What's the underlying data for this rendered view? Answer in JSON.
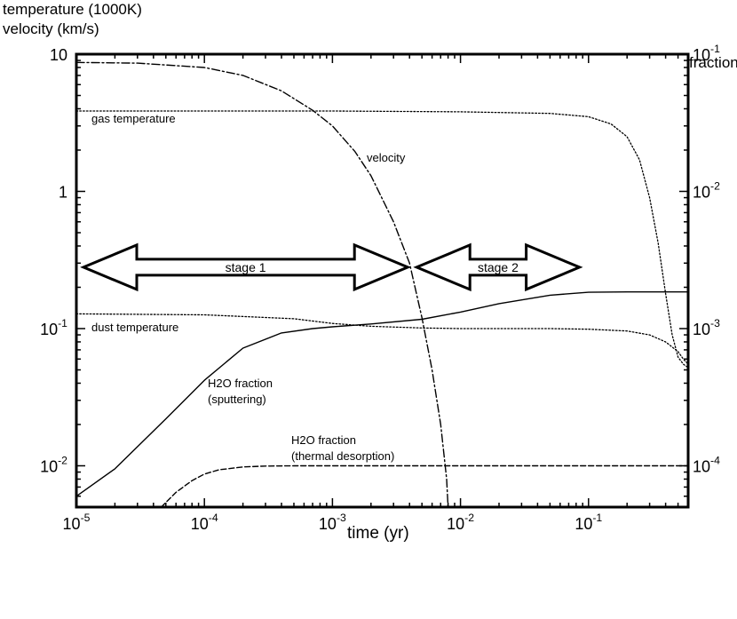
{
  "chart_data": {
    "type": "line",
    "x_scale": "log",
    "y_left_scale": "log",
    "y_right_scale": "log",
    "xlim": [
      1e-05,
      0.6
    ],
    "ylim_left": [
      0.005,
      10
    ],
    "ylim_right": [
      5e-05,
      0.1
    ],
    "axis_titles": {
      "y_left_line1": "temperature (1000K)",
      "y_left_line2": "velocity (km/s)",
      "y_right": "fraction",
      "x": "time (yr)"
    },
    "x_ticks": [
      {
        "value": 1e-05,
        "base": "10",
        "exp": "-5"
      },
      {
        "value": 0.0001,
        "base": "10",
        "exp": "-4"
      },
      {
        "value": 0.001,
        "base": "10",
        "exp": "-3"
      },
      {
        "value": 0.01,
        "base": "10",
        "exp": "-2"
      },
      {
        "value": 0.1,
        "base": "10",
        "exp": "-1"
      }
    ],
    "y_left_ticks": [
      {
        "value": 10,
        "base": "10",
        "exp": ""
      },
      {
        "value": 1,
        "base": "1",
        "exp": ""
      },
      {
        "value": 0.1,
        "base": "10",
        "exp": "-1"
      },
      {
        "value": 0.01,
        "base": "10",
        "exp": "-2"
      }
    ],
    "y_right_ticks": [
      {
        "value": 0.1,
        "base": "10",
        "exp": "-1"
      },
      {
        "value": 0.01,
        "base": "10",
        "exp": "-2"
      },
      {
        "value": 0.001,
        "base": "10",
        "exp": "-3"
      },
      {
        "value": 0.0001,
        "base": "10",
        "exp": "-4"
      }
    ],
    "series": [
      {
        "key": "velocity",
        "axis": "left",
        "style": "dashdot",
        "x": [
          1e-05,
          3e-05,
          0.0001,
          0.0002,
          0.0004,
          0.0007,
          0.001,
          0.0015,
          0.002,
          0.003,
          0.004,
          0.005,
          0.006,
          0.007,
          0.0078,
          0.008
        ],
        "y": [
          8.7,
          8.6,
          8.0,
          7.0,
          5.4,
          3.9,
          3.0,
          1.95,
          1.3,
          0.6,
          0.3,
          0.12,
          0.05,
          0.02,
          0.008,
          0.005
        ]
      },
      {
        "key": "gas_temperature",
        "axis": "left",
        "style": "dotted",
        "x": [
          1e-05,
          0.001,
          0.01,
          0.05,
          0.1,
          0.15,
          0.2,
          0.25,
          0.3,
          0.35,
          0.4,
          0.45,
          0.5,
          0.55,
          0.6
        ],
        "y": [
          3.85,
          3.85,
          3.8,
          3.7,
          3.5,
          3.1,
          2.5,
          1.7,
          0.9,
          0.42,
          0.18,
          0.09,
          0.062,
          0.055,
          0.052
        ]
      },
      {
        "key": "dust_temperature",
        "axis": "left",
        "style": "dotted",
        "x": [
          1e-05,
          0.0001,
          0.0005,
          0.001,
          0.002,
          0.005,
          0.01,
          0.05,
          0.1,
          0.2,
          0.3,
          0.4,
          0.5,
          0.55,
          0.6
        ],
        "y": [
          0.128,
          0.126,
          0.118,
          0.109,
          0.104,
          0.101,
          0.1,
          0.1,
          0.099,
          0.096,
          0.09,
          0.08,
          0.068,
          0.06,
          0.055
        ]
      },
      {
        "key": "h2o_sputtering",
        "axis": "right",
        "style": "solid",
        "x": [
          1e-05,
          2e-05,
          5e-05,
          0.0001,
          0.0002,
          0.0004,
          0.0007,
          0.001,
          0.002,
          0.005,
          0.01,
          0.02,
          0.05,
          0.1,
          0.2,
          0.6
        ],
        "y": [
          6e-05,
          9.5e-05,
          0.00022,
          0.00042,
          0.00072,
          0.00093,
          0.001,
          0.00103,
          0.00108,
          0.00117,
          0.00132,
          0.00152,
          0.00175,
          0.00184,
          0.00185,
          0.00185
        ]
      },
      {
        "key": "h2o_thermal",
        "axis": "right",
        "style": "dashed",
        "x": [
          4.6e-05,
          6e-05,
          8e-05,
          0.0001,
          0.00013,
          0.0002,
          0.0003,
          0.0005,
          0.001,
          0.01,
          0.1,
          0.6
        ],
        "y": [
          5e-05,
          6.4e-05,
          7.8e-05,
          8.7e-05,
          9.35e-05,
          9.8e-05,
          9.95e-05,
          0.0001,
          0.0001,
          0.0001,
          0.0001,
          0.0001
        ]
      }
    ],
    "annotations": {
      "gas_temperature": "gas temperature",
      "velocity": "velocity",
      "dust_temperature": "dust temperature",
      "h2o_sputtering_line1": "H2O fraction",
      "h2o_sputtering_line2": "(sputtering)",
      "h2o_thermal_line1": "H2O fraction",
      "h2o_thermal_line2": "(thermal desorption)"
    },
    "stages": [
      {
        "label": "stage 1",
        "x_start": 1e-05,
        "x_end": 0.004,
        "y": 0.28
      },
      {
        "label": "stage 2",
        "x_start": 0.004,
        "x_end": 0.085,
        "y": 0.28
      }
    ]
  }
}
